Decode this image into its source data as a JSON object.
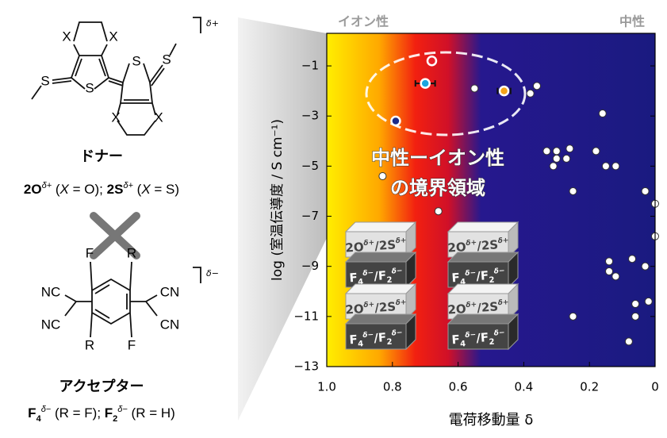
{
  "chart_data": {
    "type": "scatter",
    "x_label": "電荷移動量 δ",
    "y_label": "log (室温伝導度 / S cm⁻¹)",
    "annotations": {
      "ionic": "イオン性",
      "neutral": "中性",
      "boundary": [
        "中性ーイオン性",
        "の境界領域"
      ]
    },
    "block_labels": {
      "donor": [
        "2O",
        "δ+",
        "/2S",
        "δ+"
      ],
      "acceptor": [
        "F",
        "4",
        "δ−",
        "/F",
        "2",
        "δ−"
      ]
    },
    "xlim": [
      1.0,
      0
    ],
    "ylim": [
      -13,
      0.3
    ],
    "xticks": [
      {
        "value": 1.0,
        "label": "1.0"
      },
      0.8,
      0.6,
      0.4,
      0.2,
      0
    ],
    "yticks": [
      {
        "value": -1,
        "label": "−1"
      },
      {
        "value": -3,
        "label": "−3"
      },
      {
        "value": -5,
        "label": "−5"
      },
      {
        "value": -7,
        "label": "−7"
      },
      {
        "value": -9,
        "label": "−9"
      },
      {
        "value": -11,
        "label": "−11"
      },
      {
        "value": -13,
        "label": "−13"
      }
    ],
    "series": [
      {
        "color": "#ffffff",
        "x": [
          0.55,
          0.36,
          0.38,
          0.16,
          0.33,
          0.3,
          0.26,
          0.18,
          0.3,
          0.27,
          0.31,
          0.15,
          0.12,
          0.83,
          0.25,
          0.03,
          0.0,
          0.66,
          0.0,
          0.14,
          0.07,
          0.14,
          0.12,
          0.03,
          0.06,
          0.02,
          0.06,
          0.25,
          0.08
        ],
        "y": [
          -1.9,
          -1.8,
          -2.1,
          -2.9,
          -4.4,
          -4.4,
          -4.3,
          -4.4,
          -4.7,
          -4.7,
          -5.0,
          -5.0,
          -5.0,
          -5.4,
          -6.0,
          -6.0,
          -6.5,
          -6.8,
          -7.8,
          -8.8,
          -8.7,
          -9.2,
          -9.4,
          -9.0,
          -10.5,
          -10.4,
          -11.0,
          -11.0,
          -12.0
        ]
      },
      {
        "color": "#e8202a",
        "x": [
          0.68
        ],
        "y": [
          -0.8
        ]
      },
      {
        "color": "#1aa6e0",
        "x": [
          0.7
        ],
        "y": [
          -1.7
        ],
        "xerr": [
          0.03
        ]
      },
      {
        "color": "#f5a31a",
        "x": [
          0.46
        ],
        "y": [
          -2.0
        ],
        "xerr": [
          0.02
        ]
      },
      {
        "color": "#1a2a8a",
        "x": [
          0.79
        ],
        "y": [
          -3.2
        ],
        "xerr": [
          0.01
        ]
      }
    ]
  },
  "donor": {
    "charge": "δ+",
    "atoms": [
      "X",
      "X",
      "S",
      "S",
      "S",
      "S",
      "X",
      "X"
    ],
    "name": "ドナー",
    "formula": [
      "2O",
      "δ+",
      " (",
      "X",
      " = O); ",
      "2S",
      "δ+",
      " (",
      "X",
      " = S)"
    ]
  },
  "acceptor": {
    "charge": "δ−",
    "atoms": [
      "F",
      "R",
      "R",
      "F",
      "NC",
      "NC",
      "CN",
      "CN"
    ],
    "name": "アクセプター",
    "formula": [
      "F",
      "4",
      "δ−",
      " (R = F); ",
      "F",
      "2",
      "δ−",
      " (R = H)"
    ]
  }
}
